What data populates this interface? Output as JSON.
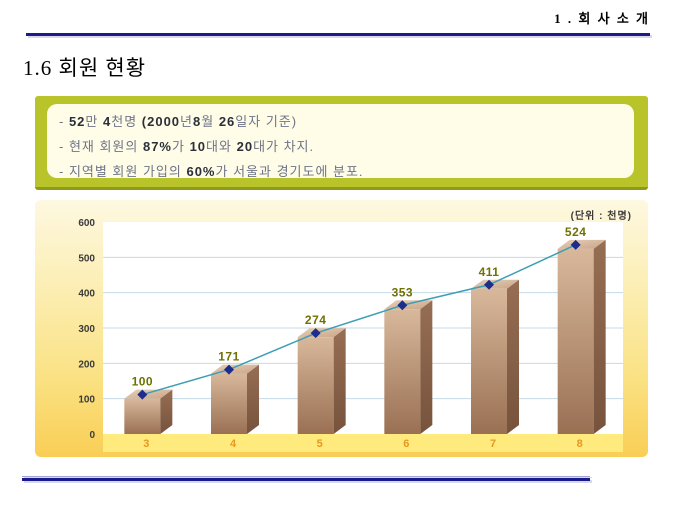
{
  "slide": {
    "section_header": "1 . 회 사 소 개",
    "page_title": "1.6 회원 현황"
  },
  "info_box": {
    "bullets": [
      {
        "segments": [
          [
            "-  ",
            false
          ],
          [
            "52",
            true
          ],
          [
            "만 ",
            false
          ],
          [
            "4",
            true
          ],
          [
            "천명 ",
            false
          ],
          [
            "(2000",
            true
          ],
          [
            "년",
            false
          ],
          [
            "8",
            true
          ],
          [
            "월 ",
            false
          ],
          [
            "26",
            true
          ],
          [
            "일자 기준)",
            false
          ]
        ]
      },
      {
        "segments": [
          [
            "- 현재 회원의 ",
            false
          ],
          [
            "87%",
            true
          ],
          [
            "가 ",
            false
          ],
          [
            "10",
            true
          ],
          [
            "대와 ",
            false
          ],
          [
            "20",
            true
          ],
          [
            "대가 차지.",
            false
          ]
        ]
      },
      {
        "segments": [
          [
            "- 지역별 회원 가입의 ",
            false
          ],
          [
            "60%",
            true
          ],
          [
            "가 서울과 경기도에 분포.",
            false
          ]
        ]
      }
    ]
  },
  "chart_data": {
    "type": "bar",
    "title": "",
    "unit_label": "(단위 : 천명)",
    "categories": [
      "3",
      "4",
      "5",
      "6",
      "7",
      "8"
    ],
    "values": [
      100,
      171,
      274,
      353,
      411,
      524
    ],
    "show_data_labels": true,
    "overlay": "line-with-diamond-markers",
    "xlabel": "",
    "ylabel": "",
    "ylim": [
      0,
      600
    ],
    "yticks": [
      0,
      100,
      200,
      300,
      400,
      500,
      600
    ],
    "grid": true,
    "legend": "none",
    "bar_style": "3d-box"
  },
  "colors": {
    "rule_navy": "#1A1A8C",
    "box_olive": "#B9C32A",
    "box_inner_cream": "#FFFDE8",
    "bullet_text": "#6E7488",
    "bullet_number": "#2A2F3A",
    "chart_bg_top": "#FDF8E1",
    "chart_bg_bottom": "#F9CE55",
    "plot_bg": "#FFFFFF",
    "gridline": "#C5D9E6",
    "axis_strip": "#FFEA7E",
    "x_label": "#E8971E",
    "y_label": "#3B3B3B",
    "bar_front_light": "#D8B89B",
    "bar_front_dark": "#9A7053",
    "bar_top_light": "#E6D0B9",
    "bar_top_dark": "#C9A487",
    "bar_side_light": "#966E53",
    "bar_side_dark": "#77533D",
    "series_line": "#3D9EB5",
    "marker": "#1C2D8C",
    "data_label": "#6F7100"
  }
}
